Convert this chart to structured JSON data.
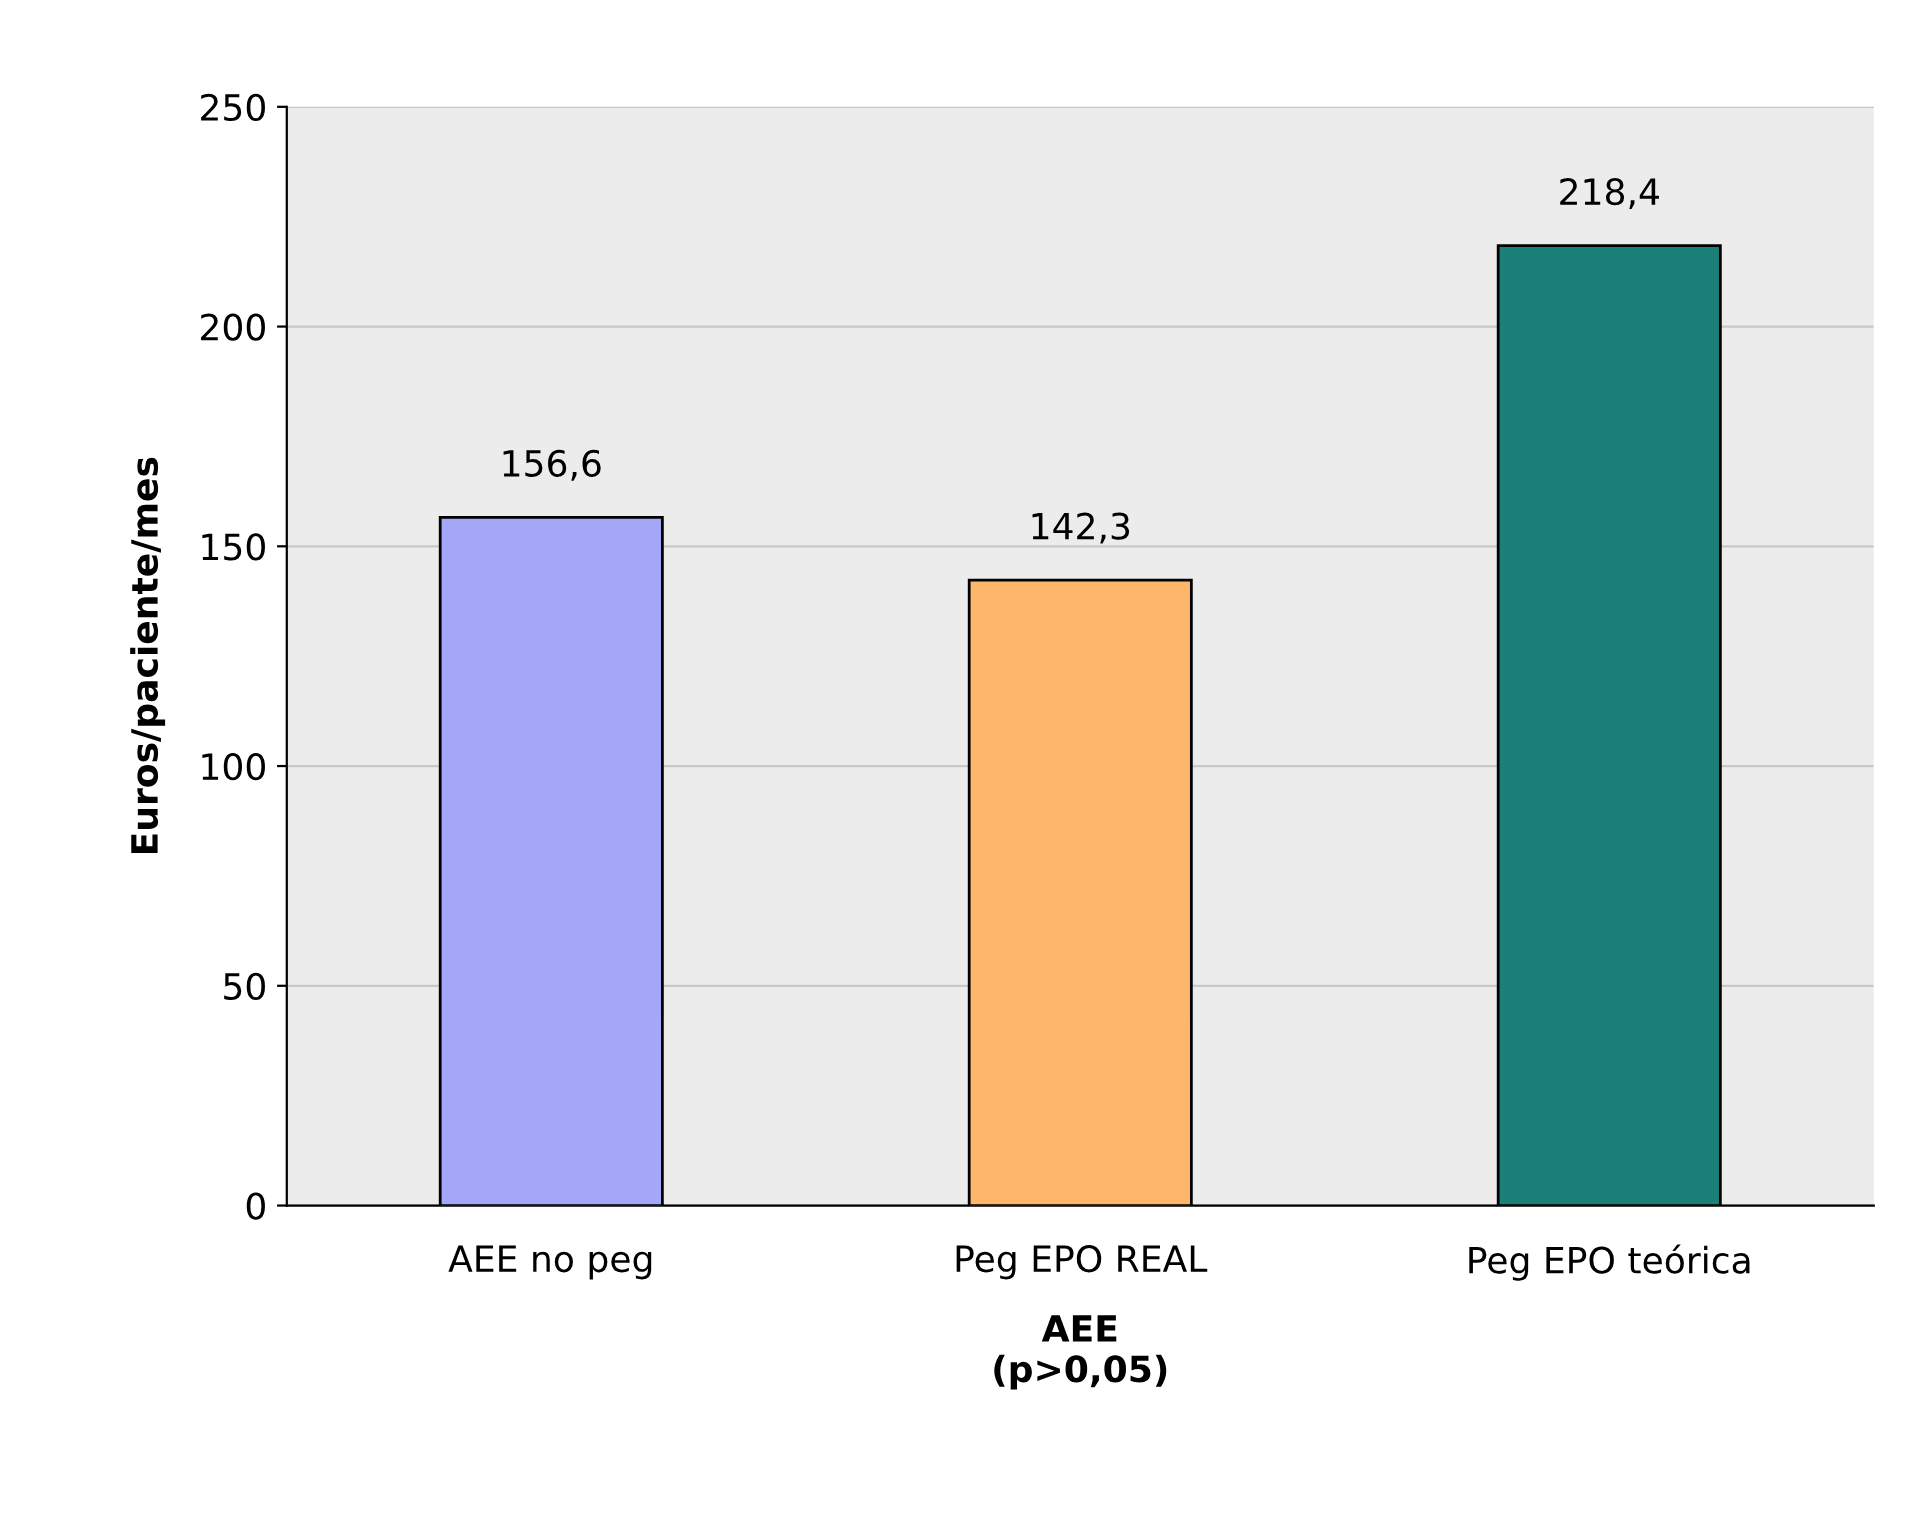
{
  "chart_data": {
    "type": "bar",
    "xlabel": "AEE\n(p>0,05)",
    "ylabel": "Euros/paciente/mes",
    "categories": [
      "AEE no peg",
      "Peg EPO REAL",
      "Peg EPO teórica"
    ],
    "values": [
      156.6,
      142.3,
      218.4
    ],
    "colors": [
      "#a6a6f8",
      "#fdb66a",
      "#1a8078"
    ],
    "value_labels": [
      "156,6",
      "142,3",
      "218,4"
    ],
    "ylim": [
      0,
      250
    ],
    "yticks": [
      0,
      50,
      100,
      150,
      200,
      250
    ],
    "grid": "y"
  }
}
